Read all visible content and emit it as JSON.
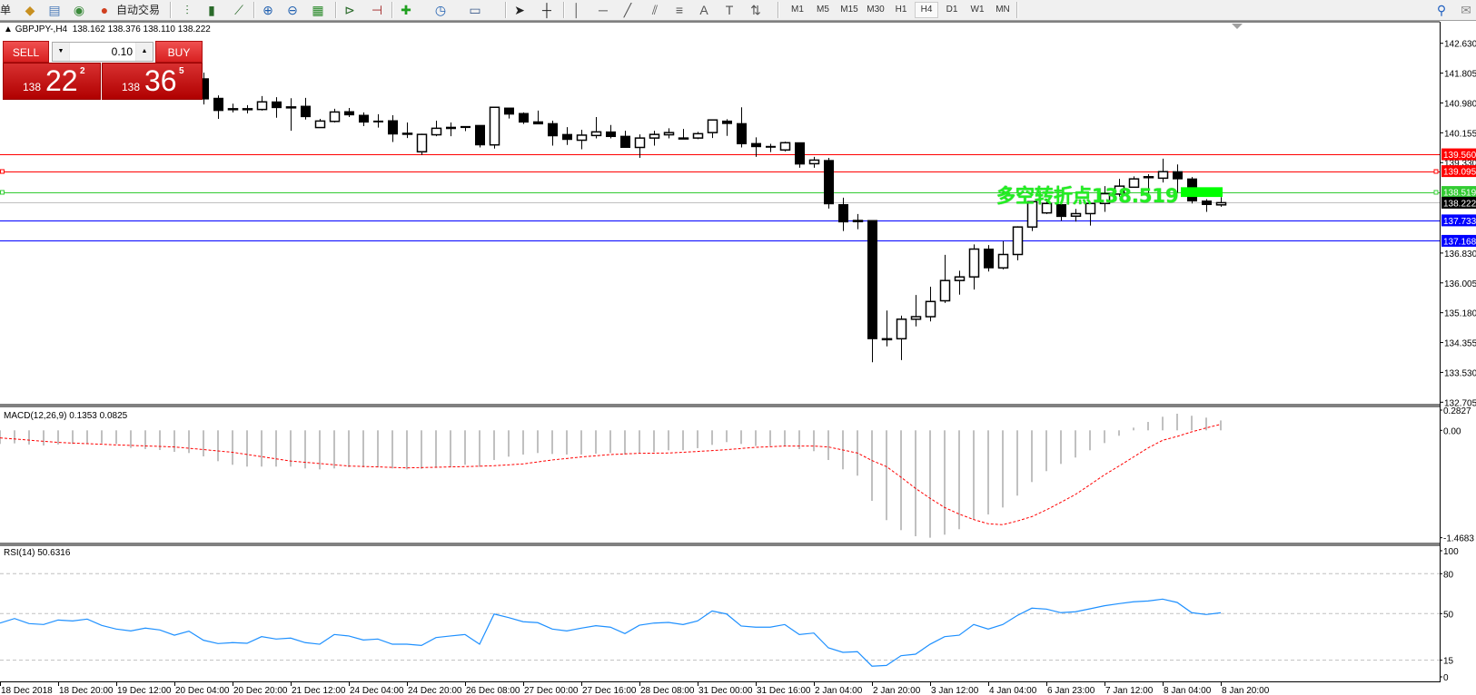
{
  "toolbar": {
    "leading_char": "单",
    "auto_trade_label": "自动交易",
    "icons": [
      "folder-icon",
      "profile-icon",
      "signal-icon",
      "auto-trade-icon",
      "bar-chart-icon",
      "candlestick-icon",
      "line-chart-icon",
      "zoom-in-icon",
      "zoom-out-icon",
      "tile-windows-icon",
      "chart-shift-icon",
      "autoscroll-icon",
      "add-indicator-icon",
      "periods-clock-icon",
      "templates-icon",
      "cursor-icon",
      "crosshair-icon",
      "vertical-line-icon",
      "horizontal-line-icon",
      "trendline-icon",
      "channel-icon",
      "fibonacci-icon",
      "text-icon",
      "text-label-icon",
      "arrows-icon",
      "search-icon",
      "chat-icon"
    ],
    "timeframes": [
      "M1",
      "M5",
      "M15",
      "M30",
      "H1",
      "H4",
      "D1",
      "W1",
      "MN"
    ],
    "active_timeframe": "H4"
  },
  "chart": {
    "symbol_info": "GBPJPY-,H4",
    "ohlc_text": "138.162 138.376 138.110 138.222"
  },
  "trade_panel": {
    "sell_label": "SELL",
    "buy_label": "BUY",
    "lot": "0.10",
    "sell_price": {
      "prefix": "138",
      "main": "22",
      "sup": "2"
    },
    "buy_price": {
      "prefix": "138",
      "main": "36",
      "sup": "5"
    }
  },
  "annotation": {
    "text": "多空转折点138.519",
    "color": "#22ee22"
  },
  "colors": {
    "bull_body": "#ffffff",
    "bear_body": "#000000",
    "macd_hist": "#c0c0c0",
    "macd_signal": "#ff0000",
    "rsi_line": "#1e90ff",
    "resistance": "#ff0000",
    "pivot": "#00c000",
    "bid": "#c0c0c0",
    "support": "#0000ff"
  },
  "chart_data": [
    {
      "type": "candlestick",
      "title": "GBPJPY-,H4",
      "ylim": [
        132.705,
        142.63
      ],
      "y_ticks": [
        "142.630",
        "141.805",
        "140.980",
        "140.155",
        "139.330",
        "136.830",
        "136.005",
        "135.180",
        "134.355",
        "133.530",
        "132.705"
      ],
      "x_ticks": [
        "18 Dec 2018",
        "18 Dec 20:00",
        "19 Dec 12:00",
        "20 Dec 04:00",
        "20 Dec 20:00",
        "21 Dec 12:00",
        "24 Dec 04:00",
        "24 Dec 20:00",
        "26 Dec 08:00",
        "27 Dec 00:00",
        "27 Dec 16:00",
        "28 Dec 08:00",
        "31 Dec 00:00",
        "31 Dec 16:00",
        "2 Jan 04:00",
        "2 Jan 20:00",
        "3 Jan 12:00",
        "4 Jan 04:00",
        "6 Jan 23:00",
        "7 Jan 12:00",
        "8 Jan 04:00",
        "8 Jan 20:00"
      ],
      "ohlc_columns": [
        "open",
        "high",
        "low",
        "close"
      ],
      "candles": [
        [
          141.65,
          141.82,
          140.94,
          141.09
        ],
        [
          141.11,
          141.19,
          140.54,
          140.77
        ],
        [
          140.81,
          140.96,
          140.72,
          140.82
        ],
        [
          140.82,
          140.92,
          140.69,
          140.82
        ],
        [
          140.8,
          141.17,
          140.77,
          141.01
        ],
        [
          141.01,
          141.14,
          140.57,
          140.85
        ],
        [
          140.86,
          141.11,
          140.21,
          140.87
        ],
        [
          140.89,
          141.12,
          140.52,
          140.6
        ],
        [
          140.3,
          140.54,
          140.3,
          140.48
        ],
        [
          140.47,
          140.82,
          140.44,
          140.73
        ],
        [
          140.74,
          140.84,
          140.59,
          140.65
        ],
        [
          140.64,
          140.72,
          140.34,
          140.45
        ],
        [
          140.48,
          140.67,
          140.3,
          140.47
        ],
        [
          140.49,
          140.64,
          139.9,
          140.12
        ],
        [
          140.13,
          140.44,
          140.01,
          140.14
        ],
        [
          139.63,
          140.13,
          139.54,
          140.11
        ],
        [
          140.1,
          140.49,
          140.06,
          140.28
        ],
        [
          140.31,
          140.44,
          140.06,
          140.27
        ],
        [
          140.33,
          140.33,
          140.2,
          140.3
        ],
        [
          140.36,
          140.36,
          139.75,
          139.82
        ],
        [
          139.82,
          140.86,
          139.72,
          140.86
        ],
        [
          140.84,
          140.84,
          140.55,
          140.67
        ],
        [
          140.69,
          140.72,
          140.4,
          140.45
        ],
        [
          140.46,
          140.77,
          140.4,
          140.4
        ],
        [
          140.41,
          140.49,
          139.8,
          140.07
        ],
        [
          140.11,
          140.31,
          139.82,
          139.97
        ],
        [
          139.95,
          140.24,
          139.7,
          140.09
        ],
        [
          140.08,
          140.59,
          140.0,
          140.18
        ],
        [
          140.18,
          140.37,
          140.0,
          140.05
        ],
        [
          140.06,
          140.21,
          139.75,
          139.75
        ],
        [
          139.75,
          140.11,
          139.46,
          140.01
        ],
        [
          140.01,
          140.21,
          139.8,
          140.11
        ],
        [
          140.1,
          140.28,
          140.0,
          140.16
        ],
        [
          140.0,
          140.26,
          140.0,
          140.01
        ],
        [
          140.01,
          140.18,
          139.98,
          140.13
        ],
        [
          140.16,
          140.51,
          140.01,
          140.51
        ],
        [
          140.48,
          140.53,
          140.07,
          140.41
        ],
        [
          140.41,
          140.86,
          139.75,
          139.85
        ],
        [
          139.86,
          140.03,
          139.49,
          139.77
        ],
        [
          139.78,
          139.85,
          139.62,
          139.77
        ],
        [
          139.68,
          139.91,
          139.64,
          139.88
        ],
        [
          139.88,
          139.88,
          139.19,
          139.29
        ],
        [
          139.3,
          139.49,
          139.19,
          139.4
        ],
        [
          139.39,
          139.46,
          138.06,
          138.19
        ],
        [
          138.17,
          138.36,
          137.44,
          137.69
        ],
        [
          137.7,
          137.91,
          137.49,
          137.73
        ],
        [
          137.73,
          137.73,
          133.81,
          134.46
        ],
        [
          134.45,
          135.24,
          134.25,
          134.46
        ],
        [
          134.46,
          135.1,
          133.87,
          135.0
        ],
        [
          135.0,
          135.67,
          134.8,
          135.07
        ],
        [
          135.07,
          135.9,
          134.94,
          135.49
        ],
        [
          135.51,
          136.78,
          135.45,
          136.07
        ],
        [
          136.07,
          136.34,
          135.68,
          136.17
        ],
        [
          136.17,
          137.07,
          135.82,
          136.94
        ],
        [
          136.94,
          137.05,
          136.32,
          136.42
        ],
        [
          136.42,
          137.16,
          136.38,
          136.79
        ],
        [
          136.79,
          137.57,
          136.63,
          137.55
        ],
        [
          137.55,
          138.25,
          137.44,
          138.25
        ],
        [
          137.94,
          138.33,
          137.91,
          138.2
        ],
        [
          138.17,
          138.17,
          137.72,
          137.84
        ],
        [
          137.85,
          138.05,
          137.7,
          137.92
        ],
        [
          137.92,
          138.2,
          137.59,
          138.2
        ],
        [
          138.2,
          138.68,
          137.97,
          138.47
        ],
        [
          138.46,
          138.88,
          138.39,
          138.68
        ],
        [
          138.65,
          138.95,
          138.65,
          138.88
        ],
        [
          138.93,
          139.01,
          138.5,
          138.94
        ],
        [
          138.9,
          139.44,
          138.78,
          139.08
        ],
        [
          139.08,
          139.28,
          138.5,
          138.88
        ],
        [
          138.88,
          138.93,
          138.2,
          138.27
        ],
        [
          138.27,
          138.32,
          137.97,
          138.17
        ],
        [
          138.162,
          138.376,
          138.11,
          138.222
        ]
      ],
      "levels": [
        {
          "price": 139.56,
          "label": "139.560",
          "color": "#ff0000",
          "kind": "resistance"
        },
        {
          "price": 139.095,
          "label": "139.095",
          "color": "#ff0000",
          "kind": "resistance"
        },
        {
          "price": 138.519,
          "label": "138.519",
          "color": "#33cc33",
          "kind": "pivot"
        },
        {
          "price": 138.222,
          "label": "138.222",
          "color": "#000000",
          "line_color": "#c0c0c0",
          "kind": "bid"
        },
        {
          "price": 137.733,
          "label": "137.733",
          "color": "#0000ff",
          "kind": "support"
        },
        {
          "price": 137.168,
          "label": "137.168",
          "color": "#0000ff",
          "kind": "support"
        }
      ],
      "pivot_zone": {
        "from": 138.38,
        "to": 138.65,
        "color": "#00ff00"
      }
    },
    {
      "type": "bar",
      "title": "MACD(12,26,9) 0.1353 0.0825",
      "ylim": [
        -1.4683,
        0.2827
      ],
      "y_ticks": [
        "0.2827",
        "0.00",
        "-1.4683"
      ],
      "series": [
        {
          "kind": "histogram",
          "values": [
            -0.186,
            -0.178,
            -0.194,
            -0.207,
            -0.194,
            -0.186,
            -0.178,
            -0.178,
            -0.186,
            -0.24,
            -0.256,
            -0.269,
            -0.294,
            -0.31,
            -0.356,
            -0.422,
            -0.471,
            -0.496,
            -0.496,
            -0.496,
            -0.496,
            -0.521,
            -0.534,
            -0.521,
            -0.505,
            -0.505,
            -0.505,
            -0.521,
            -0.534,
            -0.526,
            -0.513,
            -0.505,
            -0.471,
            -0.5,
            -0.406,
            -0.36,
            -0.331,
            -0.31,
            -0.323,
            -0.331,
            -0.331,
            -0.319,
            -0.31,
            -0.331,
            -0.31,
            -0.298,
            -0.273,
            -0.273,
            -0.244,
            -0.199,
            -0.161,
            -0.186,
            -0.215,
            -0.215,
            -0.215,
            -0.257,
            -0.285,
            -0.406,
            -0.533,
            -0.62,
            -0.964,
            -1.228,
            -1.365,
            -1.448,
            -1.4683,
            -1.427,
            -1.352,
            -1.22,
            -1.15,
            -1.055,
            -0.893,
            -0.707,
            -0.558,
            -0.459,
            -0.372,
            -0.273,
            -0.174,
            -0.074,
            0.037,
            0.115,
            0.186,
            0.227,
            0.199,
            0.174,
            0.1353
          ]
        },
        {
          "kind": "signal",
          "values": [
            -0.103,
            -0.118,
            -0.134,
            -0.15,
            -0.165,
            -0.174,
            -0.182,
            -0.19,
            -0.199,
            -0.206,
            -0.213,
            -0.22,
            -0.227,
            -0.245,
            -0.263,
            -0.282,
            -0.3,
            -0.33,
            -0.36,
            -0.39,
            -0.42,
            -0.437,
            -0.454,
            -0.471,
            -0.488,
            -0.494,
            -0.5,
            -0.507,
            -0.513,
            -0.509,
            -0.505,
            -0.5,
            -0.496,
            -0.49,
            -0.484,
            -0.472,
            -0.459,
            -0.432,
            -0.405,
            -0.385,
            -0.364,
            -0.348,
            -0.331,
            -0.322,
            -0.314,
            -0.312,
            -0.31,
            -0.3,
            -0.289,
            -0.277,
            -0.265,
            -0.248,
            -0.232,
            -0.224,
            -0.215,
            -0.215,
            -0.215,
            -0.227,
            -0.269,
            -0.31,
            -0.413,
            -0.496,
            -0.641,
            -0.794,
            -0.93,
            -1.055,
            -1.145,
            -1.22,
            -1.278,
            -1.29,
            -1.24,
            -1.18,
            -1.088,
            -0.984,
            -0.877,
            -0.744,
            -0.608,
            -0.488,
            -0.364,
            -0.24,
            -0.136,
            -0.083,
            -0.021,
            0.033,
            0.0825
          ]
        }
      ]
    },
    {
      "type": "line",
      "title": "RSI(14) 50.6316",
      "ylim": [
        0,
        100
      ],
      "y_ticks": [
        "100",
        "80",
        "50",
        "15",
        "0"
      ],
      "levels": [
        80,
        50,
        15
      ],
      "values": [
        42.9,
        46.3,
        42.5,
        41.8,
        45.2,
        44.5,
        45.9,
        41.1,
        38.4,
        37.0,
        39.1,
        37.7,
        33.8,
        36.8,
        30.0,
        27.5,
        28.2,
        27.7,
        32.7,
        30.9,
        31.6,
        28.2,
        27.0,
        34.3,
        33.2,
        30.2,
        30.9,
        27.0,
        27.0,
        26.1,
        32.0,
        33.2,
        34.3,
        27.0,
        49.7,
        47.0,
        43.9,
        43.2,
        38.4,
        37.0,
        39.1,
        40.9,
        39.8,
        35.0,
        41.3,
        42.9,
        43.4,
        41.8,
        44.5,
        52.0,
        49.7,
        40.7,
        39.8,
        39.8,
        41.8,
        34.3,
        35.4,
        24.3,
        20.9,
        21.4,
        10.5,
        11.1,
        18.4,
        19.5,
        27.0,
        32.7,
        33.8,
        41.8,
        38.4,
        41.8,
        48.6,
        54.1,
        53.4,
        50.7,
        51.4,
        53.6,
        55.9,
        57.5,
        58.9,
        59.5,
        60.9,
        58.4,
        50.7,
        49.3,
        50.6316
      ]
    }
  ]
}
